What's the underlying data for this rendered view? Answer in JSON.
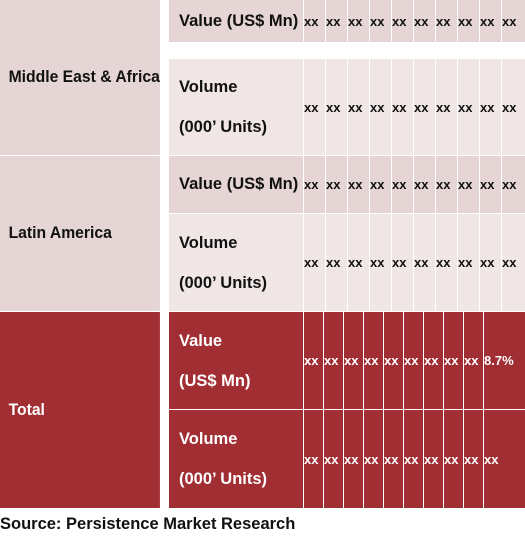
{
  "rows": [
    {
      "region": "Middle East & Africa",
      "value_label": "Value (US$ Mn)",
      "value_cells": [
        "xx",
        "xx",
        "xx",
        "xx",
        "xx",
        "xx",
        "xx",
        "xx",
        "xx",
        "xx"
      ],
      "volume_label_1": "Volume",
      "volume_label_2": "(000’ Units)",
      "volume_cells": [
        "xx",
        "xx",
        "xx",
        "xx",
        "xx",
        "xx",
        "xx",
        "xx",
        "xx",
        "xx"
      ]
    },
    {
      "region": "Latin America",
      "value_label": "Value (US$ Mn)",
      "value_cells": [
        "xx",
        "xx",
        "xx",
        "xx",
        "xx",
        "xx",
        "xx",
        "xx",
        "xx",
        "xx"
      ],
      "volume_label_1": "Volume",
      "volume_label_2": "(000’ Units)",
      "volume_cells": [
        "xx",
        "xx",
        "xx",
        "xx",
        "xx",
        "xx",
        "xx",
        "xx",
        "xx",
        "xx"
      ]
    },
    {
      "region": "Total",
      "value_label_1": "Value",
      "value_label_2": "(US$ Mn)",
      "value_cells": [
        "xx",
        "xx",
        "xx",
        "xx",
        "xx",
        "xx",
        "xx",
        "xx",
        "xx",
        "8.7%"
      ],
      "volume_label_1": "Volume",
      "volume_label_2": "(000’ Units)",
      "volume_cells": [
        "xx",
        "xx",
        "xx",
        "xx",
        "xx",
        "xx",
        "xx",
        "xx",
        "xx",
        "xx"
      ]
    }
  ],
  "source": "Source: Persistence Market Research"
}
